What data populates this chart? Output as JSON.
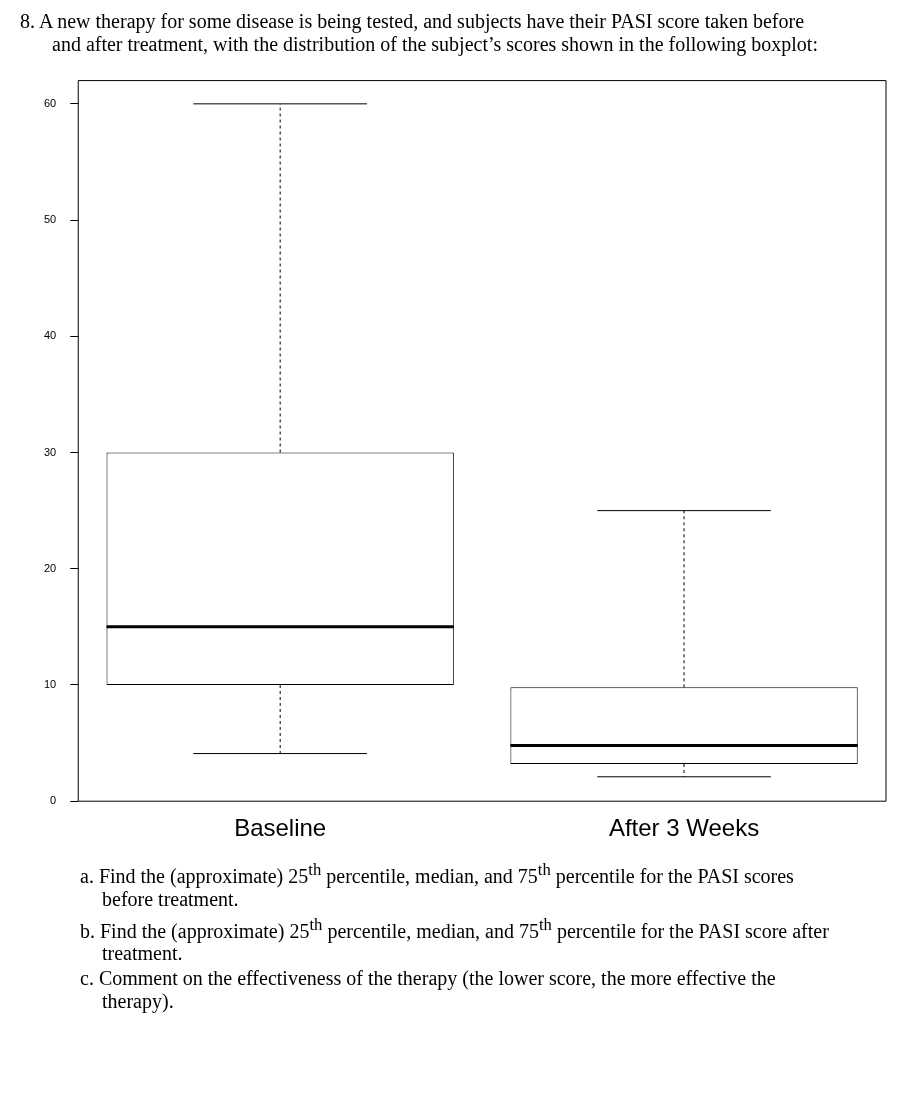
{
  "chart_data": {
    "type": "box",
    "title": "8.  A new therapy for some disease is being tested, and subjects have their PASI score taken before and after treatment, with the distribution of the subject’s scores shown in the following boxplot:",
    "categories": [
      "Baseline",
      "After 3 Weeks"
    ],
    "boxes": [
      {
        "low": 4.1,
        "q1": 10,
        "median": 15,
        "q3": 30,
        "high": 60
      },
      {
        "low": 2.1,
        "q1": 3.2,
        "median": 4.8,
        "q3": 9.8,
        "high": 25
      }
    ],
    "ylim": [
      0,
      62
    ],
    "yticks": [
      0,
      10,
      20,
      30,
      40,
      50,
      60
    ],
    "grid": false,
    "annotations": [
      "a.  Find the (approximate) 25$^{th}$ percentile, median, and 75$^{th}$ percentile for the PASI scores before treatment.",
      "b.  Find the (approximate) 25$^{th}$ percentile, median, and 75$^{th}$ percentile for the PASI score after treatment.",
      "c.  Comment on the effectiveness of the therapy (the lower score, the more effective the therapy)."
    ]
  }
}
